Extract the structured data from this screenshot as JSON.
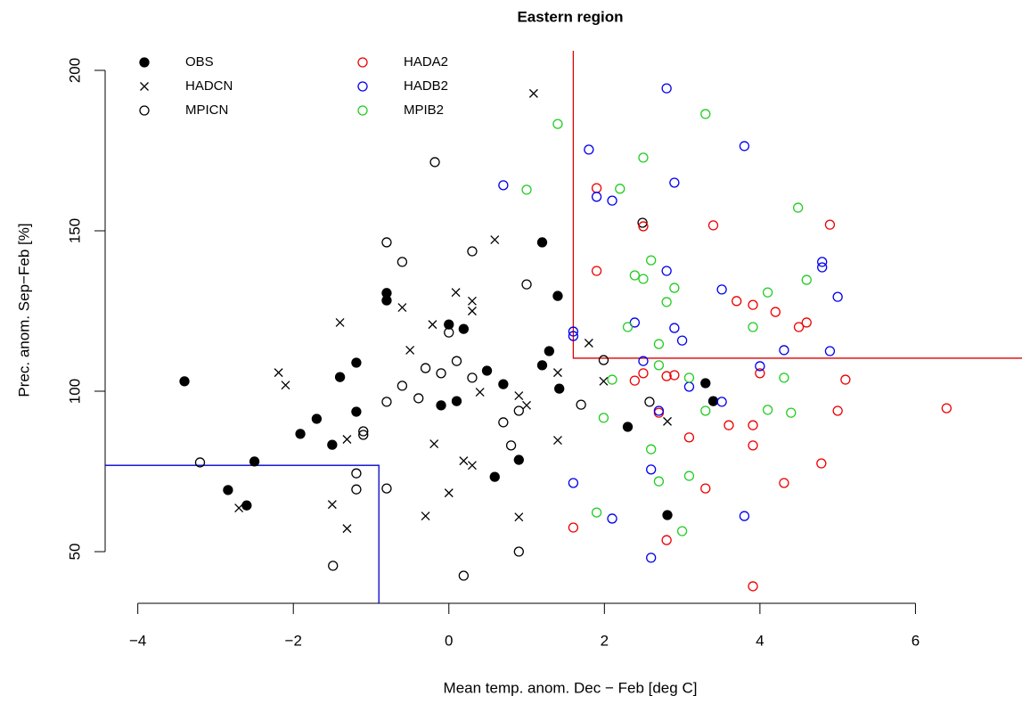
{
  "chart_data": {
    "type": "scatter",
    "title": "Eastern region",
    "x_label": "Mean temp. anom. Dec − Feb [deg C]",
    "y_label": "Prec. anom. Sep−Feb [%]",
    "xlim": [
      -4.42,
      7.37
    ],
    "ylim": [
      33.9,
      206.1
    ],
    "xticks": [
      {
        "value": -4,
        "label": "−4"
      },
      {
        "value": -2,
        "label": "−2"
      },
      0,
      2,
      4,
      6
    ],
    "yticks": [
      50,
      100,
      150,
      200
    ],
    "legend": "top-left",
    "thresholds": [
      {
        "color": "#0000cc",
        "x": -0.9,
        "y": 76.9,
        "side": "lower-left"
      },
      {
        "color": "#dd0000",
        "x": 1.6,
        "y": 110.3,
        "side": "upper-right"
      }
    ],
    "series": [
      {
        "name": "OBS",
        "color": "#000000",
        "marker": "filled-circle",
        "x": [
          -3.4,
          -2.5,
          -2.6,
          -2.84,
          -1.91,
          -1.7,
          -1.5,
          -1.4,
          -1.19,
          -1.19,
          -0.8,
          -0.8,
          0,
          -0.1,
          0.1,
          0.19,
          0.49,
          0.7,
          0.59,
          0.9,
          1.2,
          1.2,
          1.29,
          1.4,
          1.42,
          2.3,
          3.3,
          3.4,
          2.81
        ],
        "values": [
          103.1,
          78.1,
          64.4,
          69.2,
          86.7,
          91.4,
          83.3,
          104.4,
          108.9,
          93.6,
          130.6,
          128.3,
          120.8,
          95.6,
          96.9,
          119.4,
          106.4,
          102.2,
          73.3,
          78.6,
          146.4,
          108.1,
          112.5,
          129.7,
          100.8,
          88.9,
          102.5,
          96.9,
          61.4
        ]
      },
      {
        "name": "HADCN",
        "color": "#000000",
        "marker": "cross",
        "x": [
          1.09,
          -2.7,
          -2.19,
          -2.1,
          -1.4,
          -1.31,
          -1.5,
          -1.31,
          -0.6,
          -0.5,
          -0.21,
          0.09,
          0.3,
          0.3,
          0.59,
          0.4,
          0.9,
          1.0,
          -0.19,
          0.19,
          0.3,
          0,
          -0.3,
          0.9,
          1.4,
          1.4,
          1.8,
          1.99,
          2.81
        ],
        "values": [
          192.8,
          63.6,
          105.8,
          101.9,
          121.4,
          85.0,
          64.7,
          57.2,
          126.1,
          112.8,
          120.8,
          130.8,
          128.1,
          125.0,
          147.2,
          99.7,
          98.6,
          95.6,
          83.6,
          78.3,
          76.9,
          68.3,
          61.1,
          60.8,
          105.8,
          84.7,
          115.0,
          103.1,
          90.6
        ]
      },
      {
        "name": "MPICN",
        "color": "#000000",
        "marker": "open-circle",
        "x": [
          -0.18,
          -0.8,
          -0.6,
          0.3,
          1.0,
          0,
          0.1,
          -0.3,
          -0.1,
          0.3,
          -0.39,
          -0.6,
          -0.8,
          -1.1,
          -1.1,
          -1.19,
          -1.19,
          -0.8,
          -1.49,
          -3.2,
          0.19,
          0.9,
          0.9,
          0.7,
          0.8,
          1.7,
          1.99,
          2.58,
          2.49
        ],
        "values": [
          171.4,
          146.4,
          140.3,
          143.6,
          133.3,
          118.3,
          109.4,
          107.2,
          105.6,
          104.2,
          97.8,
          101.7,
          96.7,
          87.5,
          86.4,
          74.4,
          69.4,
          69.7,
          45.6,
          77.8,
          42.5,
          50.0,
          93.9,
          90.3,
          83.1,
          95.8,
          109.7,
          96.7,
          152.5
        ]
      },
      {
        "name": "HADA2",
        "color": "#ee0000",
        "marker": "open-circle",
        "x": [
          1.9,
          1.9,
          2.5,
          3.4,
          4.9,
          3.7,
          3.91,
          4.2,
          4.6,
          4.5,
          4.0,
          2.39,
          2.5,
          2.8,
          2.9,
          5.1,
          6.4,
          5.0,
          2.7,
          3.6,
          3.91,
          3.09,
          3.91,
          4.79,
          4.31,
          3.3,
          1.6,
          2.8,
          3.91
        ],
        "values": [
          163.3,
          137.5,
          151.4,
          151.7,
          151.9,
          128.1,
          126.9,
          124.7,
          121.4,
          120.0,
          105.6,
          103.3,
          105.6,
          104.7,
          105.0,
          103.6,
          94.7,
          93.9,
          93.3,
          89.4,
          89.4,
          85.6,
          83.1,
          77.5,
          71.4,
          69.7,
          57.5,
          53.6,
          39.2
        ]
      },
      {
        "name": "HADB2",
        "color": "#0000ee",
        "marker": "open-circle",
        "x": [
          2.8,
          1.8,
          0.7,
          1.9,
          2.1,
          2.9,
          3.8,
          2.8,
          3.51,
          4.8,
          4.8,
          5.0,
          2.39,
          2.9,
          3.0,
          1.6,
          1.6,
          4.31,
          4.9,
          4.0,
          2.5,
          3.09,
          3.51,
          2.7,
          1.6,
          2.6,
          2.1,
          3.8,
          2.6
        ],
        "values": [
          194.4,
          175.3,
          164.2,
          160.6,
          159.4,
          165.0,
          176.4,
          137.5,
          131.7,
          140.3,
          138.6,
          129.4,
          121.4,
          119.7,
          115.8,
          118.6,
          117.2,
          112.8,
          112.5,
          107.8,
          109.4,
          101.4,
          96.7,
          93.9,
          71.4,
          75.6,
          60.3,
          61.1,
          48.1
        ]
      },
      {
        "name": "MPIB2",
        "color": "#22cc22",
        "marker": "open-circle",
        "x": [
          1.4,
          3.3,
          2.5,
          1.0,
          2.2,
          4.49,
          2.6,
          2.39,
          2.5,
          2.9,
          4.1,
          4.6,
          2.8,
          2.3,
          3.91,
          2.7,
          2.1,
          2.7,
          3.09,
          4.31,
          4.1,
          4.4,
          3.3,
          1.99,
          2.6,
          2.7,
          3.09,
          1.9,
          3.0
        ],
        "values": [
          183.3,
          186.4,
          172.8,
          162.8,
          163.1,
          157.2,
          140.8,
          136.1,
          135.0,
          132.2,
          130.8,
          134.7,
          127.8,
          120.0,
          120.0,
          114.7,
          103.6,
          108.1,
          104.2,
          104.2,
          94.2,
          93.3,
          93.9,
          91.7,
          81.9,
          71.9,
          73.6,
          62.2,
          56.4
        ]
      }
    ]
  }
}
